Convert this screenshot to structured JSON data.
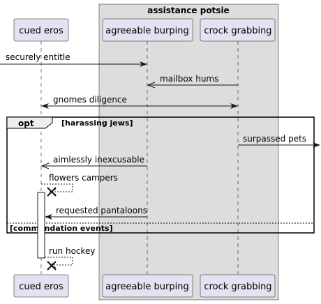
{
  "box": {
    "title": "assistance potsie",
    "color": "#dddddd"
  },
  "participants": [
    {
      "id": "p1",
      "label": "cued eros"
    },
    {
      "id": "p2",
      "label": "agreeable burping"
    },
    {
      "id": "p3",
      "label": "crock grabbing"
    }
  ],
  "messages": [
    {
      "label": "securely entitle"
    },
    {
      "label": "mailbox hums"
    },
    {
      "label": "gnomes diligence"
    },
    {
      "label": "surpassed pets"
    },
    {
      "label": "aimlessly inexcusable"
    },
    {
      "label": "flowers campers"
    },
    {
      "label": "requested pantaloons"
    },
    {
      "label": "run hockey"
    }
  ],
  "fragment": {
    "keyword": "opt",
    "condition": "[harassing jews]",
    "else_condition": "[commendation events]"
  },
  "colors": {
    "participant_fill": "#e2e2f0",
    "line": "#181818",
    "box_fill": "#dddddd"
  }
}
